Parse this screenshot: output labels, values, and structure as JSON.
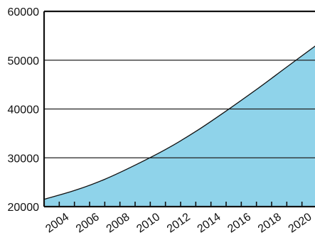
{
  "chart_data": {
    "type": "area",
    "title": "",
    "xlabel": "",
    "ylabel": "",
    "x": [
      2003,
      2005,
      2007,
      2009,
      2011,
      2013,
      2015,
      2017,
      2019,
      2021
    ],
    "series": [
      {
        "values": [
          21500,
          23300,
          25600,
          28500,
          31700,
          35400,
          39600,
          44000,
          48600,
          53200
        ]
      }
    ],
    "x_tick_labels": [
      "2004",
      "2006",
      "2008",
      "2010",
      "2012",
      "2014",
      "2016",
      "2018",
      "2020"
    ],
    "y_ticks": [
      20000,
      30000,
      40000,
      50000,
      60000
    ],
    "y_tick_labels": [
      "20000",
      "30000",
      "40000",
      "50000",
      "60000"
    ],
    "xlim": [
      2003,
      2021
    ],
    "ylim": [
      20000,
      60000
    ],
    "grid": "horizontal",
    "colors": {
      "fill": "#8fd3ea",
      "line": "#111111",
      "grid": "#222222"
    }
  }
}
